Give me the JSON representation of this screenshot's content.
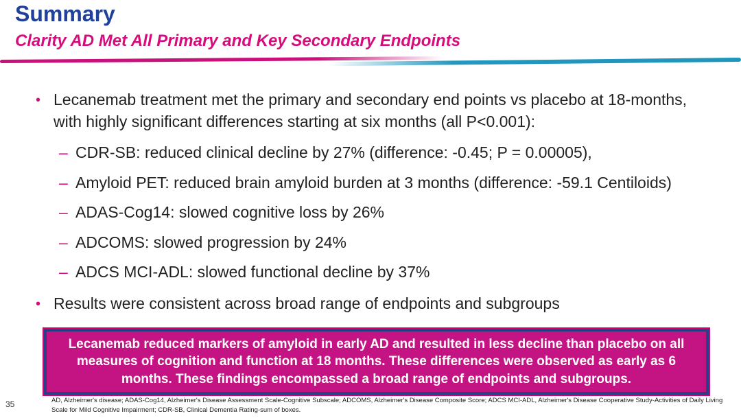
{
  "slide": {
    "title": "Summary",
    "subtitle": "Clarity AD Met All Primary and Key Secondary Endpoints",
    "page_number": "35"
  },
  "content": {
    "bullet_char": "•",
    "dash_char": "–",
    "bullet1": "Lecanemab treatment met the primary and secondary end points vs placebo at 18-months, with highly significant differences starting at six months (all P<0.001):",
    "sub_bullets": [
      "CDR-SB: reduced clinical decline by 27% (difference: -0.45; P = 0.00005),",
      "Amyloid PET: reduced brain amyloid burden at 3 months (difference: -59.1 Centiloids)",
      "ADAS-Cog14: slowed cognitive loss by 26%",
      "ADCOMS: slowed progression by 24%",
      "ADCS MCI-ADL: slowed functional decline by 37%"
    ],
    "bullet2": "Results were consistent across broad range of endpoints and subgroups"
  },
  "highlight_box": {
    "text": "Lecanemab reduced markers of amyloid in early AD and resulted in less decline than placebo on all measures of cognition and function at 18 months. These differences were observed as early as 6 months. These findings encompassed a broad range of endpoints and subgroups."
  },
  "footnote": "AD, Alzheimer's disease; ADAS-Cog14, Alzheimer's Disease Assessment Scale-Cognitive Subscale; ADCOMS, Alzheimer's Disease Composite Score; ADCS MCI-ADL, Alzheimer's Disease Cooperative Study-Activities of Daily Living Scale for Mild Cognitive Impairment; CDR-SB, Clinical Dementia Rating-sum of boxes.",
  "colors": {
    "title_blue": "#1F419B",
    "accent_magenta": "#D60C7C",
    "divider_teal": "#2095BE",
    "box_fill": "#C41383",
    "box_border_navy": "#2B3F87",
    "body_text": "#212121"
  }
}
